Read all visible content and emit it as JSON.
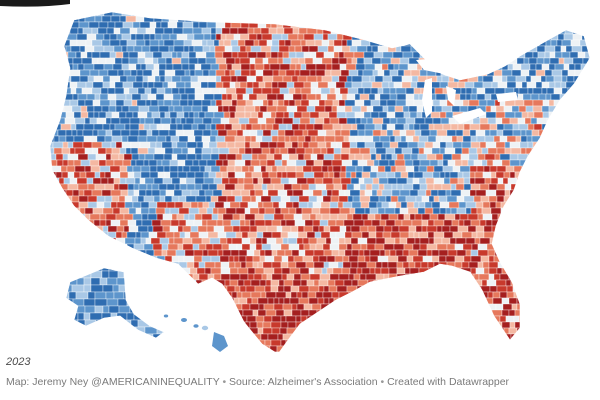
{
  "map": {
    "region": "United States counties",
    "palette": {
      "blue_dark": "#2f6db1",
      "blue_mid": "#5d95cc",
      "blue_light": "#a9c8e6",
      "neutral": "#eef2f5",
      "red_light": "#f4b8a2",
      "red_mid": "#e6785c",
      "red_dark": "#c8392c",
      "red_deepest": "#a51f1f",
      "background": "#ffffff"
    }
  },
  "footer": {
    "year": "2023",
    "author": "Map: Jeremy Ney @AMERICANINEQUALITY",
    "source": "Source: Alzheimer's Association",
    "tool": "Created with Datawrapper",
    "separator": "•"
  }
}
